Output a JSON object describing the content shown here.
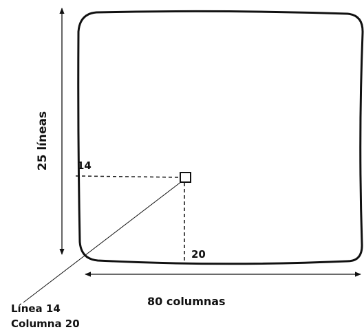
{
  "labels": {
    "rows_axis": "25 líneas",
    "row_index": "14",
    "col_index": "20",
    "cols_axis": "80 columnas",
    "cell_line": "Línea 14",
    "cell_column": "Columna 20"
  },
  "screen": {
    "rows": 25,
    "columns": 80,
    "marked_cell": {
      "line": 14,
      "column": 20
    }
  },
  "colors": {
    "ink": "#111111",
    "background": "#ffffff"
  }
}
